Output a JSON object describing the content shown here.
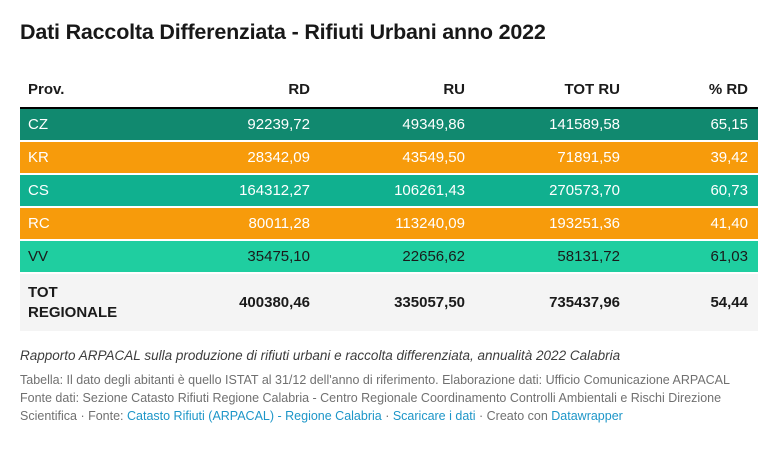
{
  "title": "Dati Raccolta Differenziata - Rifiuti Urbani anno 2022",
  "colors": {
    "row_dark_teal": "#11896F",
    "row_orange": "#F79B0B",
    "row_teal": "#10B08F",
    "row_green": "#1FCEA0",
    "total_row_bg": "#F4F4F4",
    "header_border": "#000000",
    "link_blue": "#1D96C8",
    "text_on_color": "#FFFFFF",
    "text_dark": "#1A1A1A"
  },
  "table": {
    "columns": {
      "prov": "Prov.",
      "rd": "RD",
      "ru": "RU",
      "tot_ru": "TOT RU",
      "pct_rd": "% RD"
    },
    "rows": [
      {
        "prov": "CZ",
        "rd": "92239,72",
        "ru": "49349,86",
        "tot_ru": "141589,58",
        "pct_rd": "65,15",
        "bg": "#11896F",
        "fg": "#FFFFFF"
      },
      {
        "prov": "KR",
        "rd": "28342,09",
        "ru": "43549,50",
        "tot_ru": "71891,59",
        "pct_rd": "39,42",
        "bg": "#F79B0B",
        "fg": "#FFFFFF"
      },
      {
        "prov": "CS",
        "rd": "164312,27",
        "ru": "106261,43",
        "tot_ru": "270573,70",
        "pct_rd": "60,73",
        "bg": "#10B08F",
        "fg": "#FFFFFF"
      },
      {
        "prov": "RC",
        "rd": "80011,28",
        "ru": "113240,09",
        "tot_ru": "193251,36",
        "pct_rd": "41,40",
        "bg": "#F79B0B",
        "fg": "#FFFFFF"
      },
      {
        "prov": "VV",
        "rd": "35475,10",
        "ru": "22656,62",
        "tot_ru": "58131,72",
        "pct_rd": "61,03",
        "bg": "#1FCEA0",
        "fg": "#1A1A1A"
      }
    ],
    "total_row": {
      "prov": "TOT REGIONALE",
      "rd": "400380,46",
      "ru": "335057,50",
      "tot_ru": "735437,96",
      "pct_rd": "54,44",
      "bg": "#F4F4F4",
      "fg": "#1A1A1A"
    }
  },
  "chart_data": {
    "type": "table",
    "title": "Dati Raccolta Differenziata - Rifiuti Urbani anno 2022",
    "columns": [
      "Prov.",
      "RD",
      "RU",
      "TOT RU",
      "% RD"
    ],
    "rows": [
      [
        "CZ",
        92239.72,
        49349.86,
        141589.58,
        65.15
      ],
      [
        "KR",
        28342.09,
        43549.5,
        71891.59,
        39.42
      ],
      [
        "CS",
        164312.27,
        106261.43,
        270573.7,
        60.73
      ],
      [
        "RC",
        80011.28,
        113240.09,
        193251.36,
        41.4
      ],
      [
        "VV",
        35475.1,
        22656.62,
        58131.72,
        61.03
      ],
      [
        "TOT REGIONALE",
        400380.46,
        335057.5,
        735437.96,
        54.44
      ]
    ]
  },
  "footer": {
    "description_italic": "Rapporto ARPACAL sulla produzione di rifiuti urbani e raccolta differenziata, annualità 2022 Calabria",
    "notes_text": "Tabella: Il dato degli abitanti è quello ISTAT al 31/12 dell'anno di riferimento. Elaborazione dati: Ufficio Comunicazione ARPACAL Fonte dati: Sezione Catasto Rifiuti Regione Calabria - Centro Regionale Coordinamento Controlli Ambientali e Rischi Direzione Scientifica ",
    "fonte_label": " · Fonte: ",
    "source_link": "Catasto Rifiuti (ARPACAL) - Regione Calabria",
    "sep1": " · ",
    "download_link": "Scaricare i dati",
    "sep2": " · Creato con ",
    "datawrapper_link": "Datawrapper"
  }
}
